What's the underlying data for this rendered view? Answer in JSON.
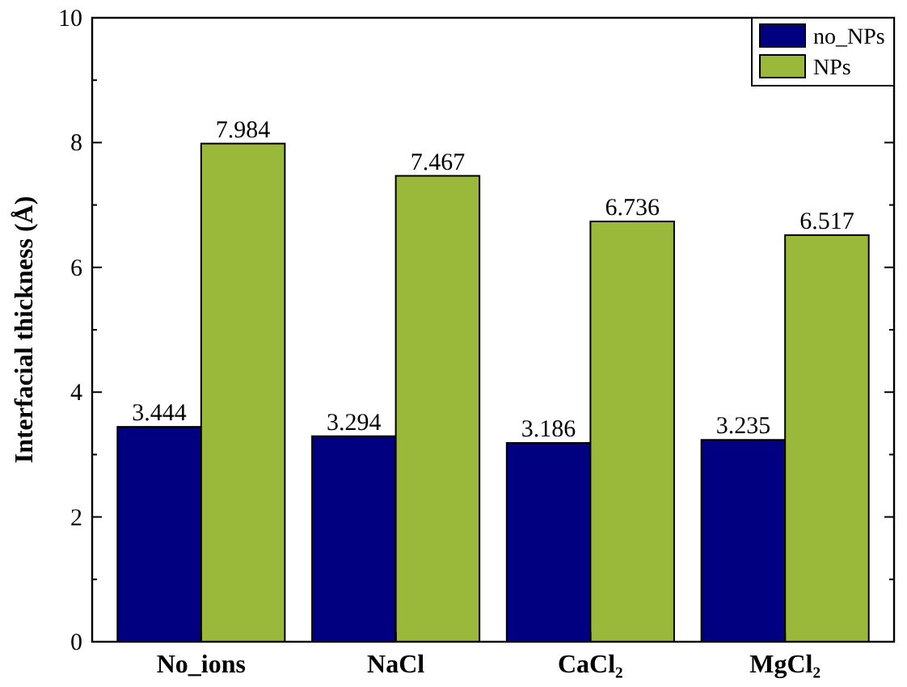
{
  "chart_data": {
    "type": "bar",
    "ylabel": "Interfacial thickness (Å)",
    "categories": [
      "No_ions",
      "NaCl",
      "CaCl₂",
      "MgCl₂"
    ],
    "series": [
      {
        "name": "no_NPs",
        "color": "#000080",
        "values": [
          3.444,
          3.294,
          3.186,
          3.235
        ]
      },
      {
        "name": "NPs",
        "color": "#9ab83a",
        "values": [
          7.984,
          7.467,
          6.736,
          6.517
        ]
      }
    ],
    "ylim": [
      0,
      10
    ],
    "yticks": [
      0,
      2,
      4,
      6,
      8,
      10
    ],
    "data_labels": true,
    "legend": "top right"
  }
}
